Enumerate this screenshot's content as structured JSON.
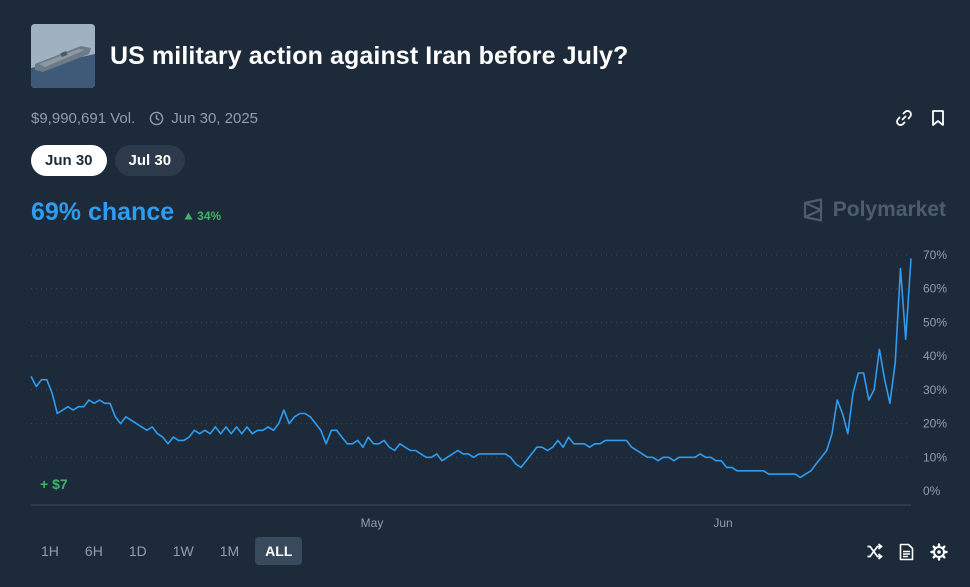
{
  "market": {
    "title": "US military action against Iran before July?",
    "volume": "$9,990,691 Vol.",
    "end_date": "Jun 30, 2025",
    "thumbnail_icon": "aircraft-carrier-image"
  },
  "icons": {
    "link": "link-icon",
    "bookmark": "bookmark-icon",
    "clock": "clock-icon",
    "shuffle": "shuffle-icon",
    "doc": "document-icon",
    "gear": "gear-icon"
  },
  "outcomes": [
    {
      "label": "Jun 30",
      "active": true
    },
    {
      "label": "Jul 30",
      "active": false
    }
  ],
  "chance": {
    "text": "69% chance",
    "delta": "34%",
    "delta_direction": "up"
  },
  "brand": "Polymarket",
  "gain_label": "+ $7",
  "ranges": [
    "1H",
    "6H",
    "1D",
    "1W",
    "1M",
    "ALL"
  ],
  "active_range": "ALL",
  "colors": {
    "background": "#1d2a3a",
    "accent": "#2e9cf0",
    "positive": "#3db468",
    "muted": "#8f9fb0"
  },
  "chart_data": {
    "type": "line",
    "series": [
      {
        "values": [
          34,
          31,
          33,
          33,
          29,
          23,
          24,
          25,
          24,
          25,
          25,
          27,
          26,
          27,
          26,
          26,
          22,
          20,
          22,
          21,
          20,
          19,
          18,
          19,
          17,
          16,
          14,
          16,
          15,
          15,
          16,
          18,
          17,
          18,
          17,
          19,
          17,
          19,
          17,
          19,
          17,
          19,
          17,
          18,
          18,
          19,
          18,
          20,
          24,
          20,
          22,
          23,
          23,
          22,
          20,
          18,
          14,
          18,
          18,
          16,
          14,
          14,
          15,
          13,
          16,
          14,
          14,
          15,
          13,
          12,
          14,
          13,
          12,
          12,
          11,
          10,
          10,
          11,
          9,
          10,
          11,
          12,
          11,
          11,
          10,
          11,
          11,
          11,
          11,
          11,
          11,
          10,
          8,
          7,
          9,
          11,
          13,
          13,
          12,
          13,
          15,
          13,
          16,
          14,
          14,
          14,
          13,
          14,
          14,
          15,
          15,
          15,
          15,
          15,
          13,
          12,
          11,
          10,
          10,
          9,
          10,
          10,
          9,
          10,
          10,
          10,
          10,
          11,
          10,
          10,
          9,
          9,
          7,
          7,
          6,
          6,
          6,
          6,
          6,
          6,
          5,
          5,
          5,
          5,
          5,
          5,
          4,
          5,
          6,
          8,
          10,
          12,
          17,
          27,
          23,
          17,
          29,
          35,
          35,
          27,
          30,
          42,
          33,
          26,
          38,
          66,
          45,
          69
        ],
        "color": "#2e9cf0"
      }
    ],
    "x_tick_labels": [
      "May",
      "Jun"
    ],
    "y_tick_labels": [
      "0%",
      "10%",
      "20%",
      "30%",
      "40%",
      "50%",
      "60%",
      "70%"
    ],
    "ylim": [
      0,
      70
    ],
    "grid": true,
    "legend": "none"
  }
}
